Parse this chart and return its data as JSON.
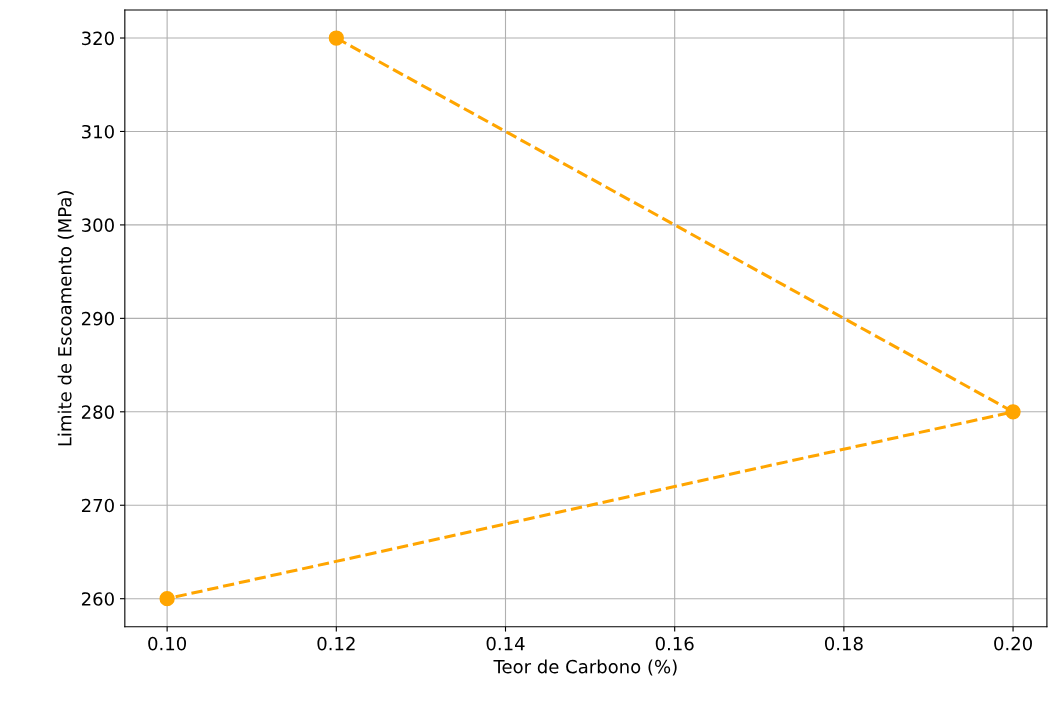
{
  "chart_data": {
    "type": "line",
    "xlabel": "Teor de Carbono (%)",
    "ylabel": "Limite de Escoamento (MPa)",
    "x": [
      0.12,
      0.2,
      0.1
    ],
    "series": [
      {
        "color": "#ffa500",
        "values": [
          320,
          280,
          260
        ]
      }
    ],
    "marker": "circle",
    "line_style": "dashed",
    "grid": true,
    "xlim": [
      0.095,
      0.204
    ],
    "xticks": [
      {
        "value": 0.1,
        "label": "0.10"
      },
      {
        "value": 0.12,
        "label": "0.12"
      },
      {
        "value": 0.14,
        "label": "0.14"
      },
      {
        "value": 0.16,
        "label": "0.16"
      },
      {
        "value": 0.18,
        "label": "0.18"
      },
      {
        "value": 0.2,
        "label": "0.20"
      }
    ],
    "ylim": [
      257,
      323
    ],
    "yticks": [
      260,
      270,
      280,
      290,
      300,
      310,
      320
    ]
  }
}
